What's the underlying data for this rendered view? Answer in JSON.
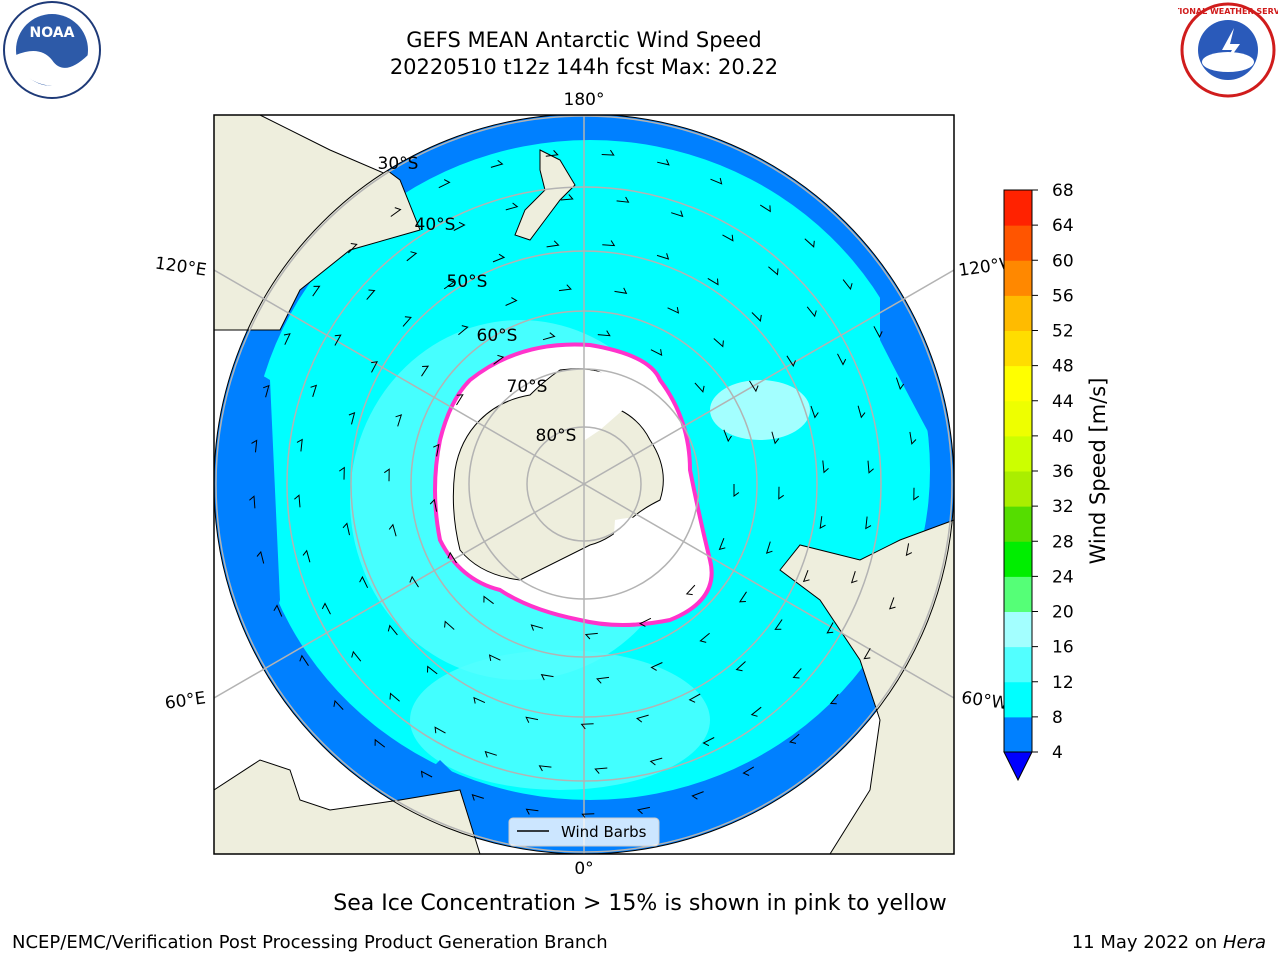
{
  "title": {
    "line1": "GEFS MEAN Antarctic Wind Speed",
    "line2": "20220510 t12z 144h fcst   Max: 20.22"
  },
  "map": {
    "projection": "south-polar-stereographic",
    "lon_labels": {
      "top": "180°",
      "upper_left": "120°E",
      "upper_right": "120°W",
      "lower_left": "60°E",
      "lower_right": "60°W",
      "bottom": "0°"
    },
    "lat_labels": [
      "30°S",
      "40°S",
      "50°S",
      "60°S",
      "70°S",
      "80°S"
    ],
    "legend_label": "Wind Barbs",
    "colors": {
      "ocean_light": "#00ffff",
      "ocean_mid": "#52ffff",
      "ocean_blue": "#0080ff",
      "ocean_dark": "#0000ff",
      "land": "#eeeedd",
      "ice": "#ffffff",
      "ice_edge": "#ff33cc",
      "grid": "#b3b3b3"
    }
  },
  "colorbar": {
    "label": "Wind Speed [m/s]",
    "ticks": [
      "4",
      "8",
      "12",
      "16",
      "20",
      "24",
      "28",
      "32",
      "36",
      "40",
      "44",
      "48",
      "52",
      "56",
      "60",
      "64",
      "68"
    ],
    "colors": [
      "#0080ff",
      "#00ffff",
      "#52ffff",
      "#a3ffff",
      "#55ff77",
      "#00ee00",
      "#55dd00",
      "#aaee00",
      "#ccff00",
      "#eeff00",
      "#ffff00",
      "#ffdd00",
      "#ffbb00",
      "#ff8800",
      "#ff5500",
      "#ff2200"
    ],
    "under_color": "#0000ff"
  },
  "caption": "Sea Ice Concentration > 15% is shown in pink to yellow",
  "footer": {
    "left": "NCEP/EMC/Verification Post Processing Product Generation Branch",
    "right_date": "11 May 2022 on ",
    "right_host": "Hera"
  },
  "logos": {
    "noaa": "NOAA",
    "nws": "NATIONAL WEATHER SERVICE"
  }
}
